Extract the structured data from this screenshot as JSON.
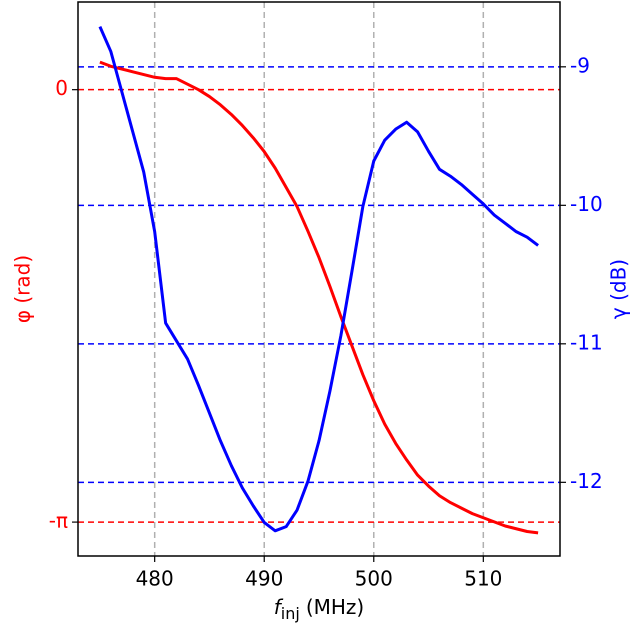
{
  "chart_data": {
    "type": "line",
    "xlabel": {
      "symbol": "f",
      "subscript": "inj",
      "unit": "(MHz)"
    },
    "ylabel": "φ (rad)",
    "y2label": "γ (dB)",
    "x": [
      475,
      476,
      477,
      478,
      479,
      480,
      481,
      482,
      483,
      484,
      485,
      486,
      487,
      488,
      489,
      490,
      491,
      492,
      493,
      494,
      495,
      496,
      497,
      498,
      499,
      500,
      501,
      502,
      503,
      504,
      505,
      506,
      507,
      508,
      509,
      510,
      511,
      512,
      513,
      514,
      515
    ],
    "series": [
      {
        "name": "φ",
        "color": "#ff0000",
        "axis": "y",
        "values": [
          0.2,
          0.17,
          0.15,
          0.13,
          0.11,
          0.09,
          0.08,
          0.08,
          0.04,
          0,
          -0.05,
          -0.11,
          -0.18,
          -0.26,
          -0.35,
          -0.45,
          -0.57,
          -0.71,
          -0.85,
          -1.03,
          -1.22,
          -1.43,
          -1.65,
          -1.86,
          -2.07,
          -2.26,
          -2.43,
          -2.57,
          -2.69,
          -2.8,
          -2.88,
          -2.95,
          -3,
          -3.04,
          -3.08,
          -3.11,
          -3.14,
          -3.17,
          -3.19,
          -3.21,
          -3.22
        ]
      },
      {
        "name": "γ",
        "color": "#0000ff",
        "axis": "y2",
        "values": [
          -8.71,
          -8.89,
          -9.18,
          -9.47,
          -9.76,
          -10.19,
          -10.85,
          -10.98,
          -11.11,
          -11.3,
          -11.5,
          -11.7,
          -11.88,
          -12.04,
          -12.17,
          -12.29,
          -12.35,
          -12.32,
          -12.2,
          -11.99,
          -11.7,
          -11.34,
          -10.94,
          -10.48,
          -10.01,
          -9.68,
          -9.53,
          -9.45,
          -9.4,
          -9.47,
          -9.61,
          -9.74,
          -9.79,
          -9.85,
          -9.92,
          -9.99,
          -10.07,
          -10.13,
          -10.19,
          -10.23,
          -10.29
        ]
      }
    ],
    "xlim": [
      473,
      517
    ],
    "xticks": [
      480,
      490,
      500,
      510
    ],
    "ylim": [
      -3.388,
      0.637
    ],
    "yticks": [
      0,
      {
        "value": -3.1416,
        "label": "-π"
      }
    ],
    "y2lim": [
      -12.532,
      -8.532
    ],
    "y2ticks": [
      -9,
      -10,
      -11,
      -12
    ],
    "grid": true
  }
}
